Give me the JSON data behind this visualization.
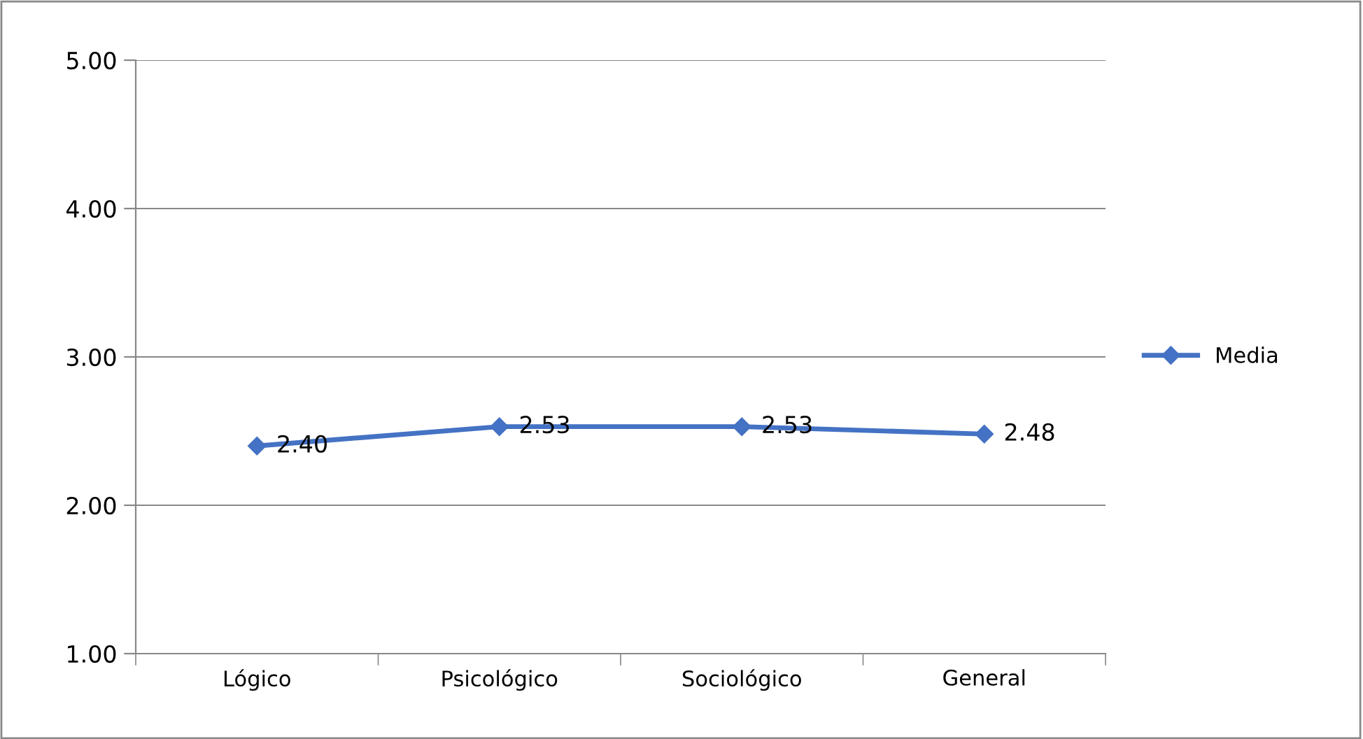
{
  "chart_data": {
    "type": "line",
    "categories": [
      "Lógico",
      "Psicológico",
      "Sociológico",
      "General"
    ],
    "series": [
      {
        "name": "Media",
        "color": "#4472c4",
        "values": [
          2.4,
          2.53,
          2.53,
          2.48
        ],
        "value_labels": [
          "2.40",
          "2.53",
          "2.53",
          "2.48"
        ]
      }
    ],
    "ylim": [
      1,
      5
    ],
    "yticks": [
      {
        "value": 1,
        "label": "1.00"
      },
      {
        "value": 2,
        "label": "2.00"
      },
      {
        "value": 3,
        "label": "3.00"
      },
      {
        "value": 4,
        "label": "4.00"
      },
      {
        "value": 5,
        "label": "5.00"
      }
    ],
    "grid": "y",
    "legend": "right",
    "marker": "diamond",
    "line_style": "solid"
  }
}
